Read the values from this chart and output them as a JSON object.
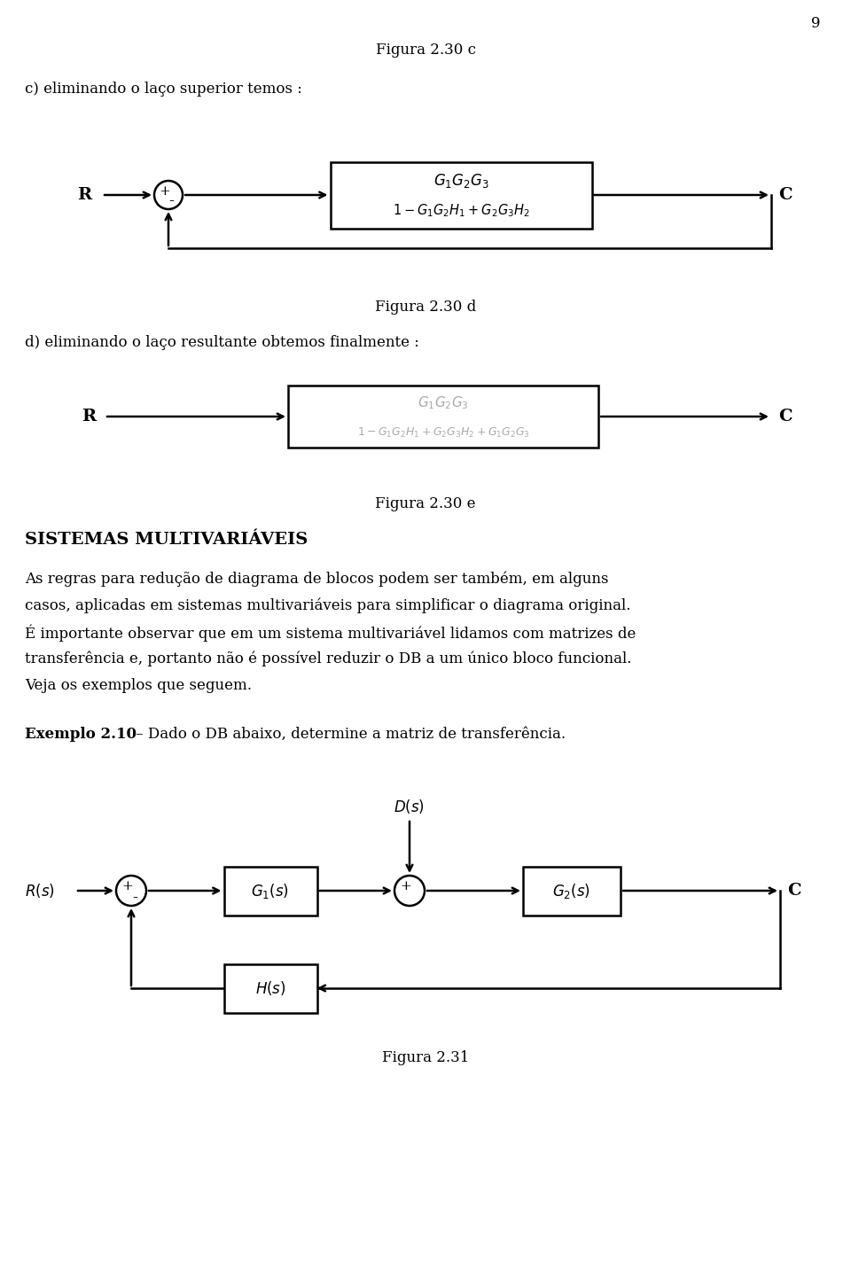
{
  "page_number": "9",
  "fig_c_title": "Figura 2.30 c",
  "fig_c_label": "c) eliminando o laço superior temos :",
  "fig_d_title": "Figura 2.30 d",
  "fig_d_label": "d) eliminando o laço resultante obtemos finalmente :",
  "fig_e_title": "Figura 2.30 e",
  "section_title": "SISTEMAS MULTIVARIÁVEIS",
  "para_line1": "As regras para redução de diagrama de blocos podem ser também, em alguns",
  "para_line2": "casos, aplicadas em sistemas multivariáveis para simplificar o diagrama original.",
  "para_line3": "É importante observar que em um sistema multivariável lidamos com matrizes de",
  "para_line4": "transferência e, portanto não é possível reduzir o DB a um único bloco funcional.",
  "para_line5": "Veja os exemplos que seguem.",
  "example_bold": "Exemplo 2.10",
  "example_rest": " – Dado o DB abaixo, determine a matriz de transferência.",
  "fig31_title": "Figura 2.31",
  "bg_color": "#ffffff",
  "text_color": "#000000",
  "gray_color": "#aaaaaa"
}
